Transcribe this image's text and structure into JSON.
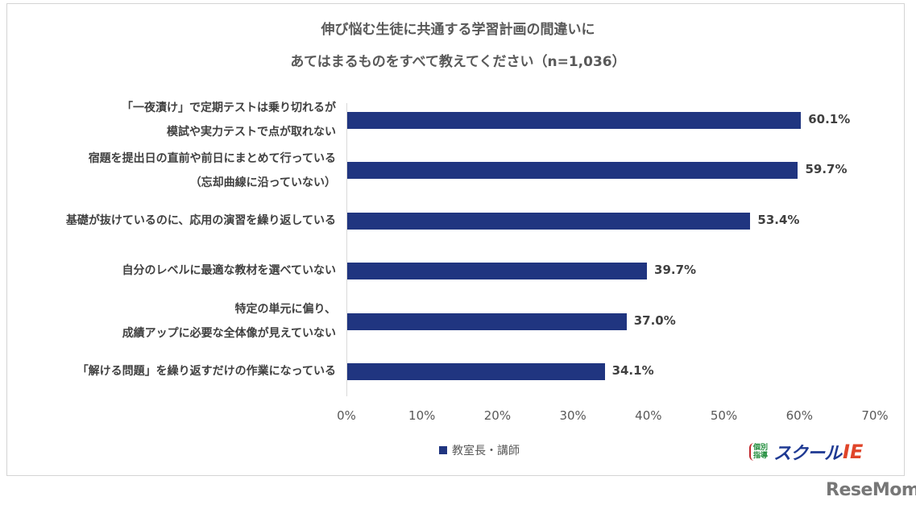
{
  "chart_data": {
    "type": "bar",
    "orientation": "horizontal",
    "title": "伸び悩む生徒に共通する学習計画の間違いに あてはまるものをすべて教えてください（n=1,036）",
    "title_lines": [
      "伸び悩む生徒に共通する学習計画の間違いに",
      "あてはまるものをすべて教えてください（n=1,036）"
    ],
    "categories": [
      "「一夜漬け」で定期テストは乗り切れるが模試や実力テストで点が取れない",
      "宿題を提出日の直前や前日にまとめて行っている（忘却曲線に沿っていない）",
      "基礎が抜けているのに、応用の演習を繰り返している",
      "自分のレベルに最適な教材を選べていない",
      "特定の単元に偏り、成績アップに必要な全体像が見えていない",
      "「解ける問題」を繰り返すだけの作業になっている"
    ],
    "category_lines": [
      [
        "「一夜漬け」で定期テストは乗り切れるが",
        "模試や実力テストで点が取れない"
      ],
      [
        "宿題を提出日の直前や前日にまとめて行っている",
        "（忘却曲線に沿っていない）"
      ],
      [
        "基礎が抜けているのに、応用の演習を繰り返している"
      ],
      [
        "自分のレベルに最適な教材を選べていない"
      ],
      [
        "特定の単元に偏り、",
        "成績アップに必要な全体像が見えていない"
      ],
      [
        "「解ける問題」を繰り返すだけの作業になっている"
      ]
    ],
    "series": [
      {
        "name": "教室長・講師",
        "color": "#203580",
        "values": [
          60.1,
          59.7,
          53.4,
          39.7,
          37.0,
          34.1
        ]
      }
    ],
    "value_labels": [
      "60.1%",
      "59.7%",
      "53.4%",
      "39.7%",
      "37.0%",
      "34.1%"
    ],
    "xlabel": "",
    "ylabel": "",
    "xlim": [
      0,
      70
    ],
    "x_ticks": [
      "0%",
      "10%",
      "20%",
      "30%",
      "40%",
      "50%",
      "60%",
      "70%"
    ],
    "grid": false,
    "legend_position": "bottom"
  },
  "legend": {
    "label": "教室長・講師"
  },
  "logo": {
    "badge_line1": "個別",
    "badge_line2": "指導",
    "main": "スクール",
    "ie": "IE"
  },
  "watermark": "ReseMom"
}
